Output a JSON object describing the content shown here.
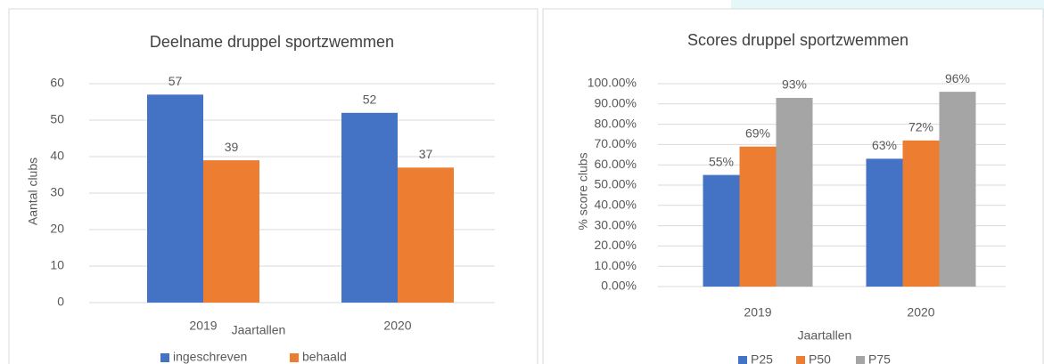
{
  "chart_data": [
    {
      "type": "bar",
      "title": "Deelname druppel sportzwemmen",
      "x_label": "Jaartallen",
      "y_label": "Aantal clubs",
      "categories": [
        "2019",
        "2020"
      ],
      "series": [
        {
          "name": "ingeschreven",
          "color": "#4472c4",
          "values": [
            57,
            52
          ]
        },
        {
          "name": "behaald",
          "color": "#ed7d31",
          "values": [
            39,
            37
          ]
        }
      ],
      "ylim": [
        0,
        60
      ],
      "yticks": [
        0,
        10,
        20,
        30,
        40,
        50,
        60
      ],
      "grid": true,
      "legend": "bottom"
    },
    {
      "type": "bar",
      "title": "Scores druppel sportzwemmen",
      "x_label": "Jaartallen",
      "y_label": "% score clubs",
      "categories": [
        "2019",
        "2020"
      ],
      "series": [
        {
          "name": "P25",
          "color": "#4472c4",
          "values": [
            55,
            63
          ],
          "value_labels": [
            "55%",
            "63%"
          ]
        },
        {
          "name": "P50",
          "color": "#ed7d31",
          "values": [
            69,
            72
          ],
          "value_labels": [
            "69%",
            "72%"
          ]
        },
        {
          "name": "P75",
          "color": "#a5a5a5",
          "values": [
            93,
            96
          ],
          "value_labels": [
            "93%",
            "96%"
          ]
        }
      ],
      "ylim": [
        0,
        100
      ],
      "yticks": [
        {
          "value": 0,
          "label": "0.00%"
        },
        {
          "value": 10,
          "label": "10.00%"
        },
        {
          "value": 20,
          "label": "20.00%"
        },
        {
          "value": 30,
          "label": "30.00%"
        },
        {
          "value": 40,
          "label": "40.00%"
        },
        {
          "value": 50,
          "label": "50.00%"
        },
        {
          "value": 60,
          "label": "60.00%"
        },
        {
          "value": 70,
          "label": "70.00%"
        },
        {
          "value": 80,
          "label": "80.00%"
        },
        {
          "value": 90,
          "label": "90.00%"
        },
        {
          "value": 100,
          "label": "100.00%"
        }
      ],
      "grid": true,
      "legend": "bottom"
    }
  ]
}
